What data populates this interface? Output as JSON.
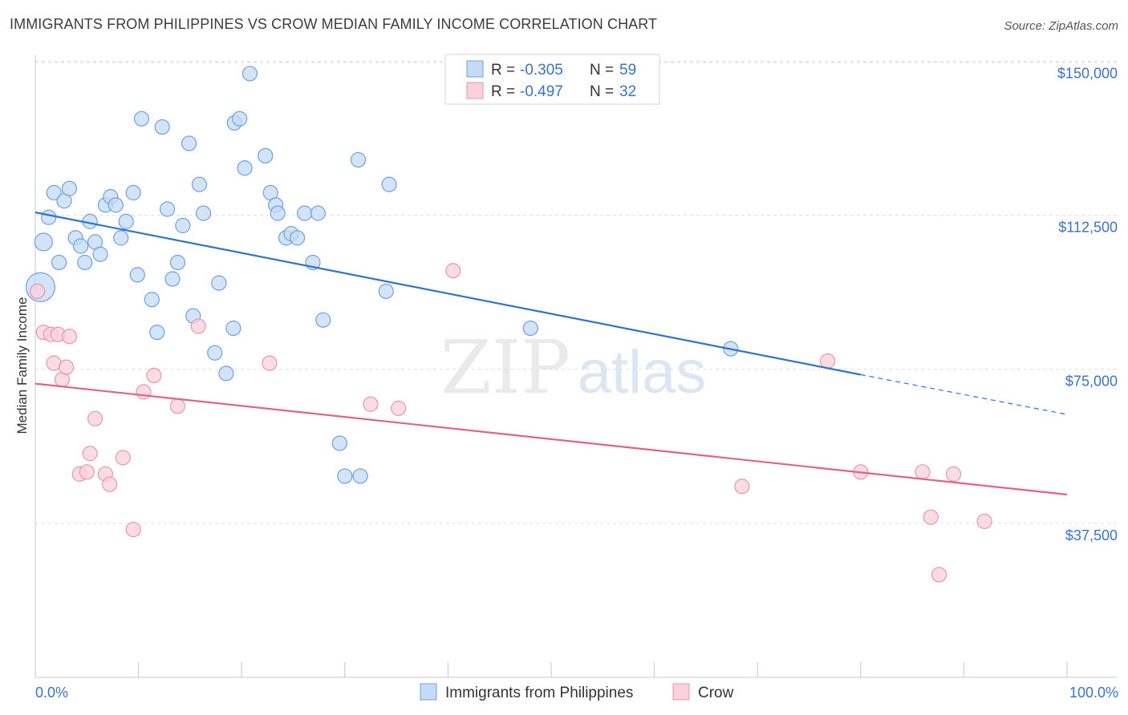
{
  "title": "IMMIGRANTS FROM PHILIPPINES VS CROW MEDIAN FAMILY INCOME CORRELATION CHART",
  "source": "Source: ZipAtlas.com",
  "watermark": {
    "zip": "ZIP",
    "atlas": "atlas"
  },
  "chart_data": {
    "type": "scatter",
    "ylabel": "Median Family Income",
    "xlim": [
      0,
      100
    ],
    "ylim": [
      0,
      157500
    ],
    "x_tick_labels": {
      "left": "0.0%",
      "right": "100.0%"
    },
    "y_ticks": [
      {
        "value": 37500,
        "label": "$37,500"
      },
      {
        "value": 75000,
        "label": "$75,000"
      },
      {
        "value": 112500,
        "label": "$112,500"
      },
      {
        "value": 150000,
        "label": "$150,000"
      }
    ],
    "grid": true,
    "legend_position": "top-center",
    "stats": [
      {
        "r_label": "R = ",
        "r_value": "-0.305",
        "n_label": "N = ",
        "n_value": "59"
      },
      {
        "r_label": "R = ",
        "r_value": "-0.497",
        "n_label": "N = ",
        "n_value": "32"
      }
    ],
    "series": [
      {
        "name": "Immigrants from Philippines",
        "color": "#6fa0e0",
        "fill": "#c5dbf5",
        "line_color": "#2f72d1",
        "trend": {
          "x0": 0,
          "y0": 113200,
          "x1": 80,
          "y1": 73700,
          "dash_to_x": 100,
          "dash_to_y": 64000
        },
        "points": [
          [
            0.5,
            95000,
            18
          ],
          [
            0.8,
            106000,
            11
          ],
          [
            1.3,
            112000,
            9
          ],
          [
            1.8,
            118000,
            9
          ],
          [
            2.3,
            101000,
            9
          ],
          [
            2.8,
            116000,
            9
          ],
          [
            3.3,
            119000,
            9
          ],
          [
            3.9,
            107000,
            9
          ],
          [
            4.4,
            105000,
            9
          ],
          [
            4.8,
            101000,
            9
          ],
          [
            5.3,
            111000,
            9
          ],
          [
            5.8,
            106000,
            9
          ],
          [
            6.3,
            103000,
            9
          ],
          [
            6.8,
            115000,
            9
          ],
          [
            7.3,
            117000,
            9
          ],
          [
            7.8,
            115000,
            9
          ],
          [
            8.3,
            107000,
            9
          ],
          [
            8.8,
            111000,
            9
          ],
          [
            9.5,
            118000,
            9
          ],
          [
            9.9,
            98000,
            9
          ],
          [
            10.3,
            136000,
            9
          ],
          [
            11.3,
            92000,
            9
          ],
          [
            11.8,
            84000,
            9
          ],
          [
            12.3,
            134000,
            9
          ],
          [
            12.8,
            114000,
            9
          ],
          [
            13.3,
            97000,
            9
          ],
          [
            13.8,
            101000,
            9
          ],
          [
            14.3,
            110000,
            9
          ],
          [
            14.9,
            130000,
            9
          ],
          [
            15.3,
            88000,
            9
          ],
          [
            15.9,
            120000,
            9
          ],
          [
            16.3,
            113000,
            9
          ],
          [
            17.4,
            79000,
            9
          ],
          [
            17.8,
            96000,
            9
          ],
          [
            18.5,
            74000,
            9
          ],
          [
            19.2,
            85000,
            9
          ],
          [
            19.3,
            135000,
            9
          ],
          [
            19.8,
            136000,
            9
          ],
          [
            20.3,
            124000,
            9
          ],
          [
            20.8,
            147000,
            9
          ],
          [
            22.3,
            127000,
            9
          ],
          [
            22.8,
            118000,
            9
          ],
          [
            23.3,
            115000,
            9
          ],
          [
            23.5,
            113000,
            9
          ],
          [
            24.3,
            107000,
            9
          ],
          [
            24.8,
            108000,
            9
          ],
          [
            25.4,
            107000,
            9
          ],
          [
            26.1,
            113000,
            9
          ],
          [
            26.9,
            101000,
            9
          ],
          [
            27.4,
            113000,
            9
          ],
          [
            27.9,
            87000,
            9
          ],
          [
            29.5,
            57000,
            9
          ],
          [
            30.0,
            49000,
            9
          ],
          [
            31.3,
            126000,
            9
          ],
          [
            31.5,
            49000,
            9
          ],
          [
            34.0,
            94000,
            9
          ],
          [
            34.3,
            120000,
            9
          ],
          [
            48.0,
            85000,
            9
          ],
          [
            67.4,
            80000,
            9
          ]
        ]
      },
      {
        "name": "Crow",
        "color": "#e895b0",
        "fill": "#f9d0dc",
        "line_color": "#e0628c",
        "trend": {
          "x0": 0,
          "y0": 71500,
          "x1": 100,
          "y1": 44500
        },
        "points": [
          [
            0.2,
            94000,
            9
          ],
          [
            0.8,
            84000,
            9
          ],
          [
            1.5,
            83500,
            9
          ],
          [
            1.8,
            76500,
            9
          ],
          [
            2.2,
            83500,
            9
          ],
          [
            2.6,
            72500,
            9
          ],
          [
            3.0,
            75500,
            9
          ],
          [
            3.3,
            83000,
            9
          ],
          [
            4.3,
            49500,
            9
          ],
          [
            5.0,
            50000,
            9
          ],
          [
            5.3,
            54500,
            9
          ],
          [
            5.8,
            63000,
            9
          ],
          [
            6.8,
            49500,
            9
          ],
          [
            7.2,
            47000,
            9
          ],
          [
            8.5,
            53500,
            9
          ],
          [
            9.5,
            36000,
            9
          ],
          [
            10.5,
            69500,
            9
          ],
          [
            11.5,
            73500,
            9
          ],
          [
            13.8,
            66000,
            9
          ],
          [
            15.8,
            85500,
            9
          ],
          [
            22.7,
            76500,
            9
          ],
          [
            32.5,
            66500,
            9
          ],
          [
            35.2,
            65500,
            9
          ],
          [
            40.5,
            99000,
            9
          ],
          [
            68.5,
            46500,
            9
          ],
          [
            76.8,
            77000,
            9
          ],
          [
            80.0,
            50000,
            9
          ],
          [
            86.0,
            50000,
            9
          ],
          [
            86.8,
            39000,
            9
          ],
          [
            87.6,
            25000,
            9
          ],
          [
            89.0,
            49500,
            9
          ],
          [
            92.0,
            38000,
            9
          ]
        ]
      }
    ]
  },
  "bottom_legend": [
    {
      "label": "Immigrants from Philippines"
    },
    {
      "label": "Crow"
    }
  ]
}
